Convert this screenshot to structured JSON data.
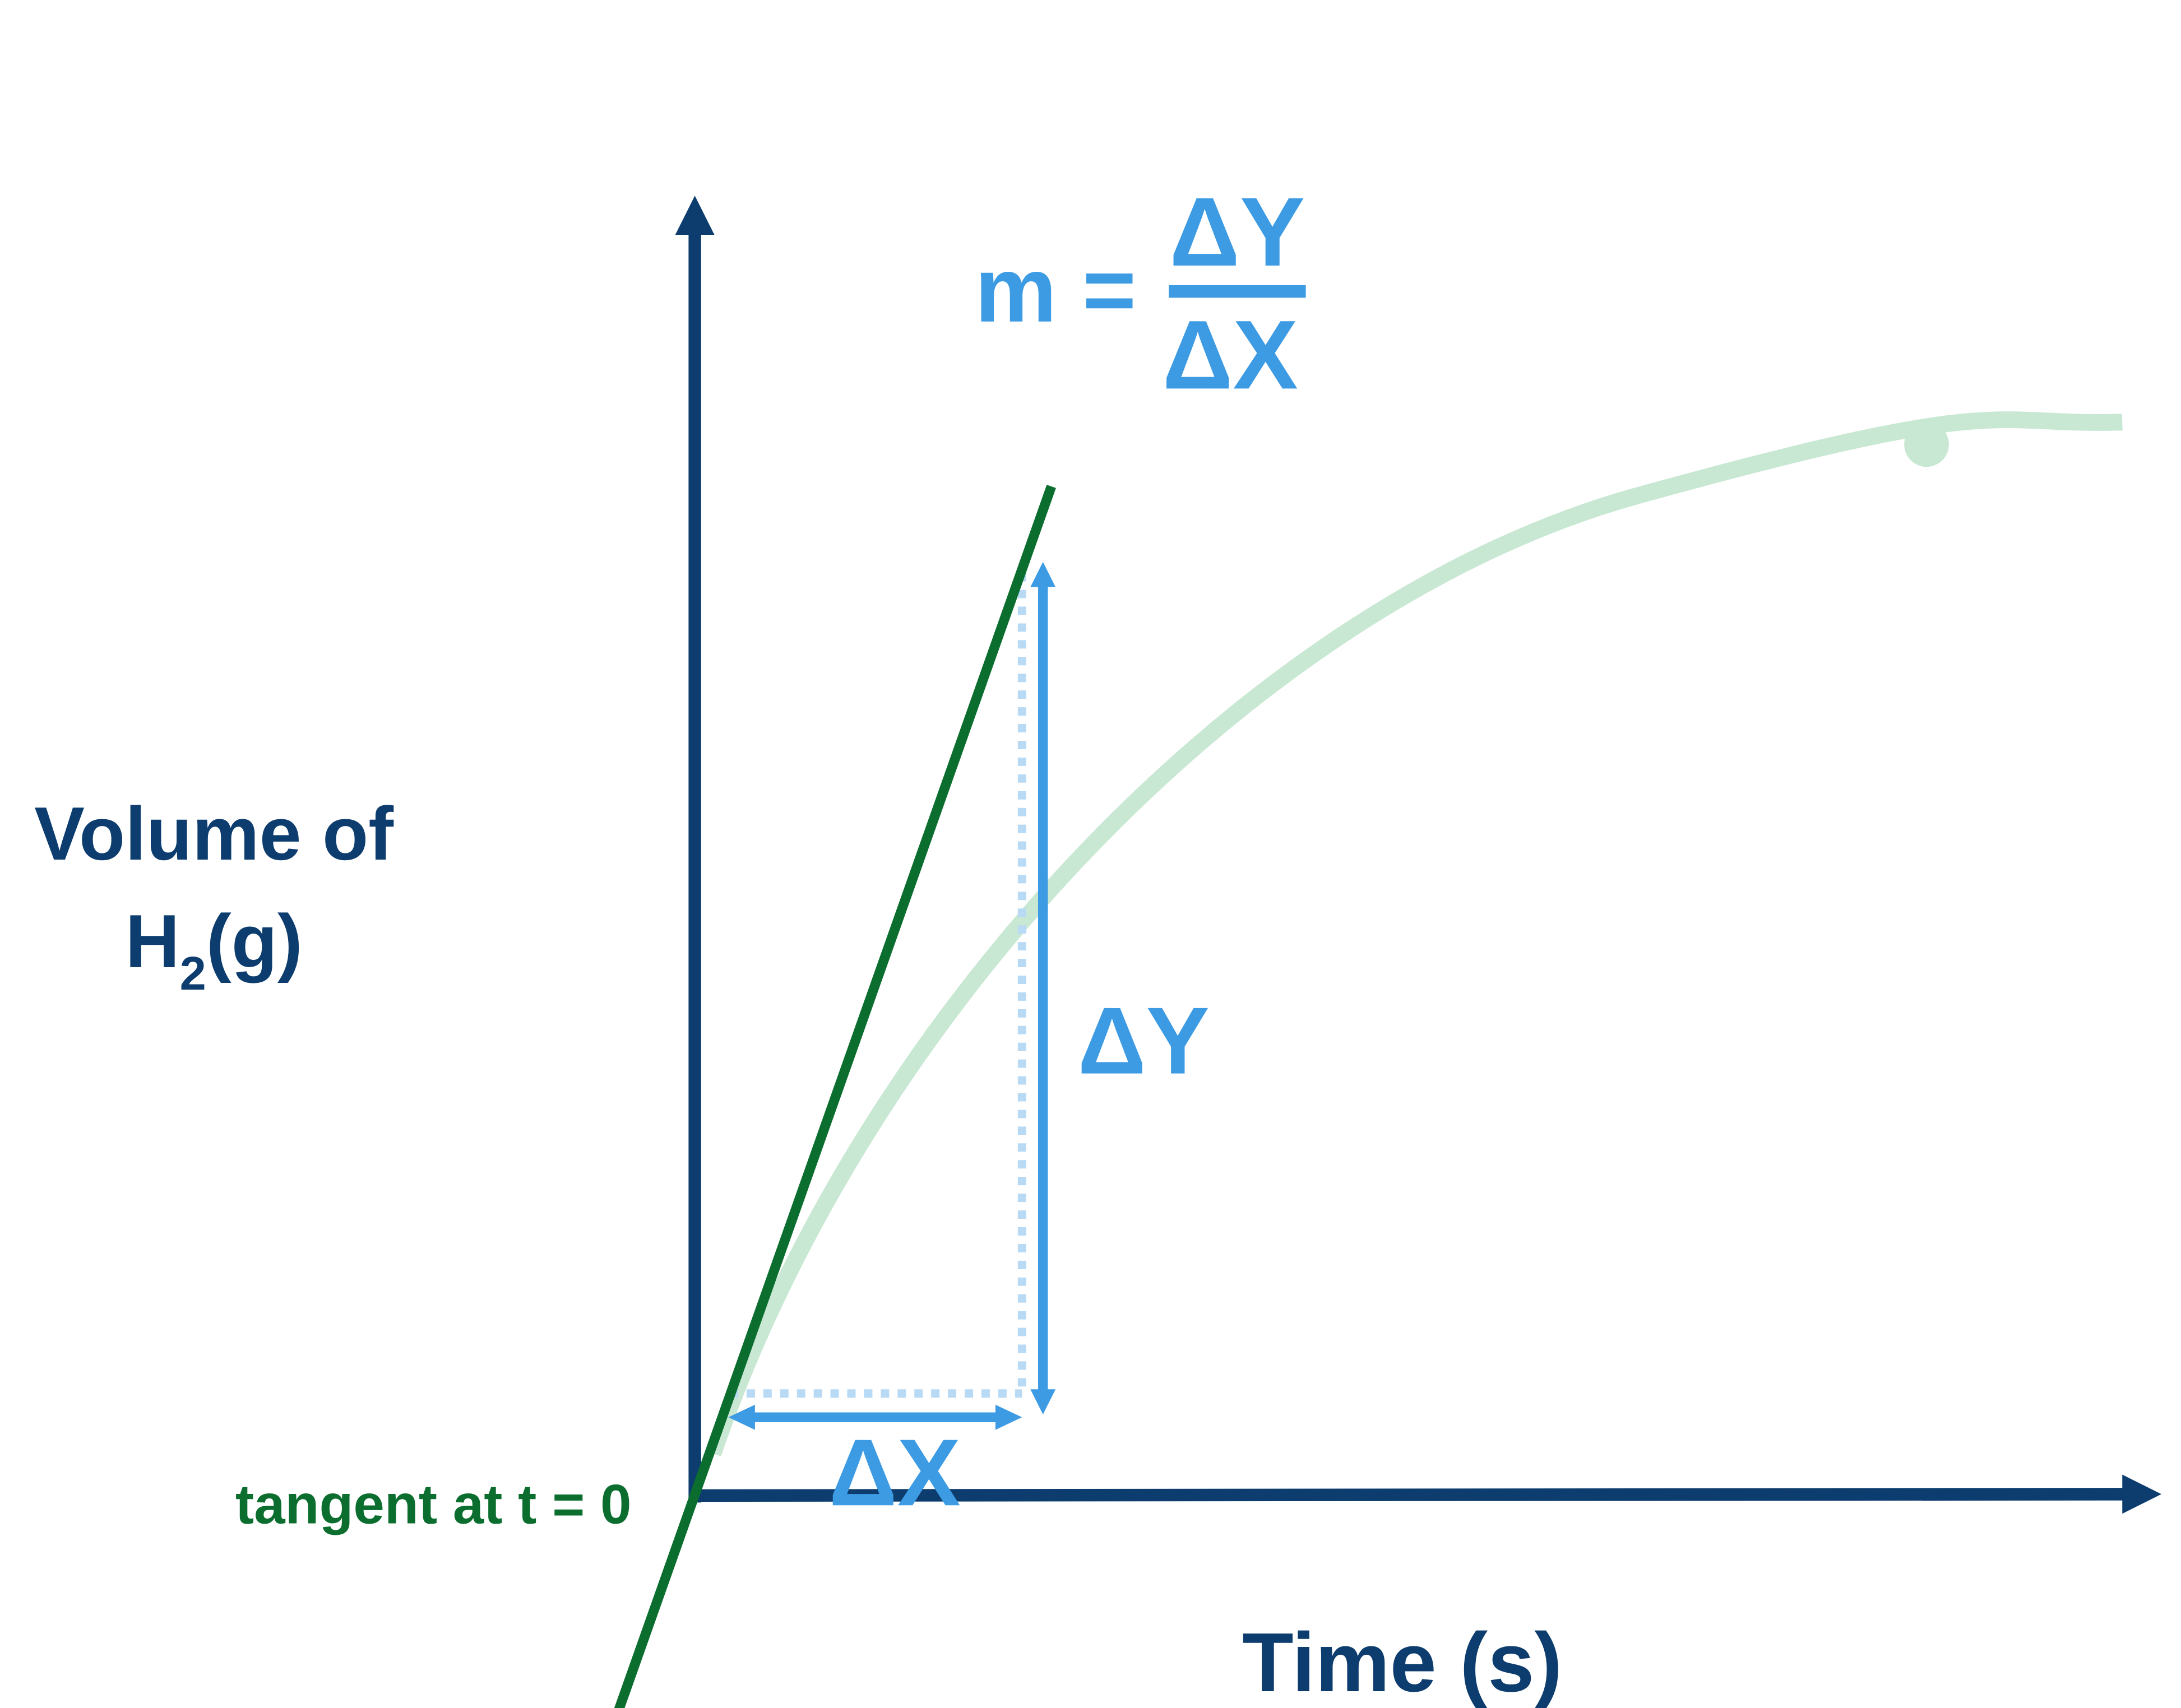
{
  "formula": {
    "lhs": "m =",
    "numerator": "ΔY",
    "denominator": "ΔX"
  },
  "y_axis_label": {
    "line1": "Volume of",
    "line2_start": "H",
    "subscript": "2",
    "line2_end": "(g)"
  },
  "x_axis_label": "Time (s)",
  "delta_y_label": "ΔY",
  "delta_x_label": "ΔX",
  "tangent_label": "tangent at t = 0"
}
